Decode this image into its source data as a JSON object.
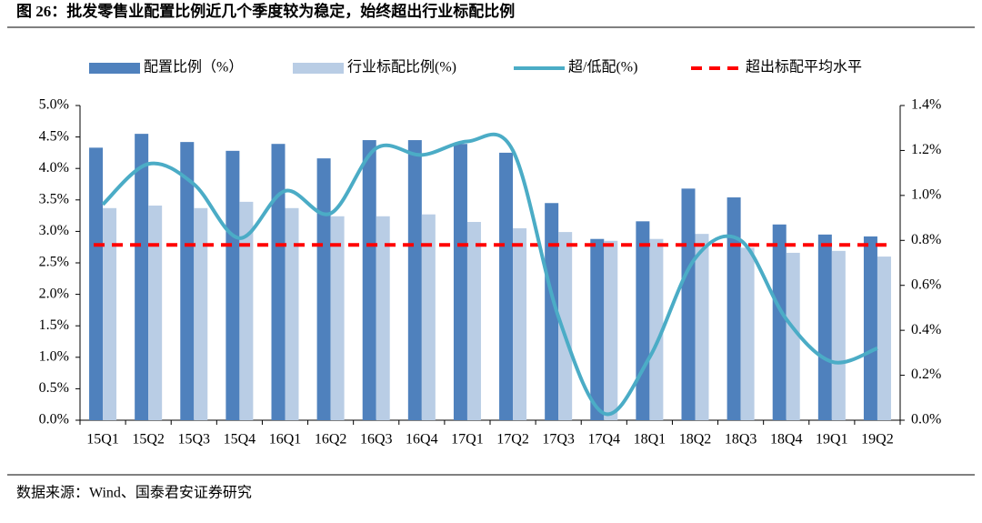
{
  "chart_data": {
    "type": "bar_line",
    "title": "图 26：批发零售业配置比例近几个季度较为稳定，始终超出行业标配比例",
    "source": "数据来源：Wind、国泰君安证券研究",
    "categories": [
      "15Q1",
      "15Q2",
      "15Q3",
      "15Q4",
      "16Q1",
      "16Q2",
      "16Q3",
      "16Q4",
      "17Q1",
      "17Q2",
      "17Q3",
      "17Q4",
      "18Q1",
      "18Q2",
      "18Q3",
      "18Q4",
      "19Q1",
      "19Q2"
    ],
    "series": [
      {
        "name": "配置比例（%）",
        "color": "#4f81bd",
        "type": "bar",
        "values": [
          4.33,
          4.55,
          4.42,
          4.28,
          4.39,
          4.16,
          4.45,
          4.45,
          4.39,
          4.25,
          3.45,
          2.88,
          3.16,
          3.68,
          3.54,
          3.11,
          2.95,
          2.92
        ]
      },
      {
        "name": "行业标配比例(%)",
        "color": "#b9cde5",
        "type": "bar",
        "values": [
          3.37,
          3.41,
          3.37,
          3.47,
          3.37,
          3.24,
          3.24,
          3.27,
          3.15,
          3.05,
          2.99,
          2.85,
          2.88,
          2.96,
          2.74,
          2.66,
          2.69,
          2.6
        ]
      },
      {
        "name": "超/低配(%)",
        "color": "#4bacc6",
        "type": "line",
        "axis": "y2",
        "values": [
          0.96,
          1.14,
          1.05,
          0.81,
          1.02,
          0.92,
          1.21,
          1.18,
          1.24,
          1.2,
          0.46,
          0.03,
          0.28,
          0.72,
          0.8,
          0.45,
          0.26,
          0.32
        ]
      }
    ],
    "average_line": {
      "name": "超出标配平均水平",
      "color": "#ff0000",
      "axis": "y2",
      "value": 0.78
    },
    "ylim": [
      0,
      5
    ],
    "yticks": [
      {
        "value": 0,
        "label": "0.0%"
      },
      {
        "value": 0.5,
        "label": "0.5%"
      },
      {
        "value": 1,
        "label": "1.0%"
      },
      {
        "value": 1.5,
        "label": "1.5%"
      },
      {
        "value": 2,
        "label": "2.0%"
      },
      {
        "value": 2.5,
        "label": "2.5%"
      },
      {
        "value": 3,
        "label": "3.0%"
      },
      {
        "value": 3.5,
        "label": "3.5%"
      },
      {
        "value": 4,
        "label": "4.0%"
      },
      {
        "value": 4.5,
        "label": "4.5%"
      },
      {
        "value": 5,
        "label": "5.0%"
      }
    ],
    "y2lim": [
      0,
      1.4
    ],
    "y2ticks": [
      {
        "value": 0,
        "label": "0.0%"
      },
      {
        "value": 0.2,
        "label": "0.2%"
      },
      {
        "value": 0.4,
        "label": "0.4%"
      },
      {
        "value": 0.6,
        "label": "0.6%"
      },
      {
        "value": 0.8,
        "label": "0.8%"
      },
      {
        "value": 1,
        "label": "1.0%"
      },
      {
        "value": 1.2,
        "label": "1.2%"
      },
      {
        "value": 1.4,
        "label": "1.4%"
      }
    ]
  }
}
